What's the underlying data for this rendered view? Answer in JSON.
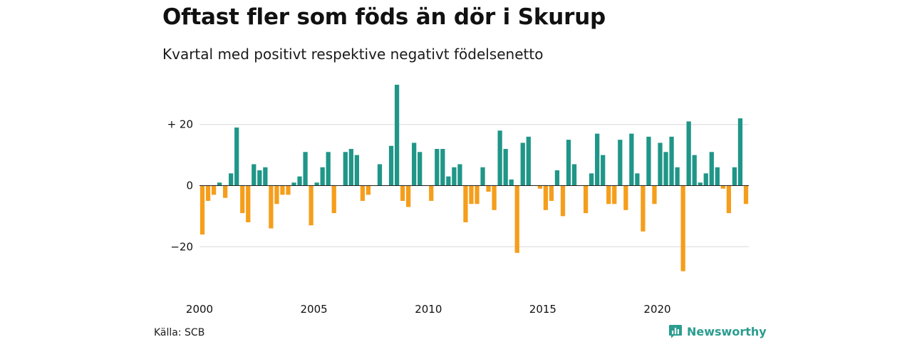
{
  "title": "Oftast fler som föds än dör i Skurup",
  "subtitle": "Kvartal med positivt respektive negativt födelsenetto",
  "source": "Källa: SCB",
  "brand": "Newsworthy",
  "colors": {
    "positive": "#1f9688",
    "negative": "#f59e1b",
    "grid": "#d9d9d9",
    "zero": "#222222",
    "brand": "#2a9d8f"
  },
  "chart_data": {
    "type": "bar",
    "title": "Oftast fler som föds än dör i Skurup",
    "subtitle": "Kvartal med positivt respektive negativt födelsenetto",
    "xlabel": "",
    "ylabel": "",
    "grid": true,
    "ylim": [
      -32,
      36
    ],
    "yticks": [
      {
        "value": 20,
        "label": "+ 20"
      },
      {
        "value": 0,
        "label": "0"
      },
      {
        "value": -20,
        "label": "−20"
      }
    ],
    "xticks": [
      {
        "year": 2000,
        "label": "2000"
      },
      {
        "year": 2005,
        "label": "2005"
      },
      {
        "year": 2010,
        "label": "2010"
      },
      {
        "year": 2015,
        "label": "2015"
      },
      {
        "year": 2020,
        "label": "2020"
      }
    ],
    "start_year": 2000,
    "values": [
      -16,
      -5,
      -3,
      1,
      -4,
      4,
      19,
      -9,
      -12,
      7,
      5,
      6,
      -14,
      -6,
      -3,
      -3,
      1,
      3,
      11,
      -13,
      1,
      6,
      11,
      -9,
      0,
      11,
      12,
      10,
      -5,
      -3,
      0,
      7,
      0,
      13,
      33,
      -5,
      -7,
      14,
      11,
      0,
      -5,
      12,
      12,
      3,
      6,
      7,
      -12,
      -6,
      -6,
      6,
      -2,
      -8,
      18,
      12,
      2,
      -22,
      14,
      16,
      0,
      -1,
      -8,
      -5,
      5,
      -10,
      15,
      7,
      0,
      -9,
      4,
      17,
      10,
      -6,
      -6,
      15,
      -8,
      17,
      4,
      -15,
      16,
      -6,
      14,
      11,
      16,
      6,
      -28,
      21,
      10,
      1,
      4,
      11,
      6,
      -1,
      -9,
      6,
      22,
      -6
    ]
  }
}
